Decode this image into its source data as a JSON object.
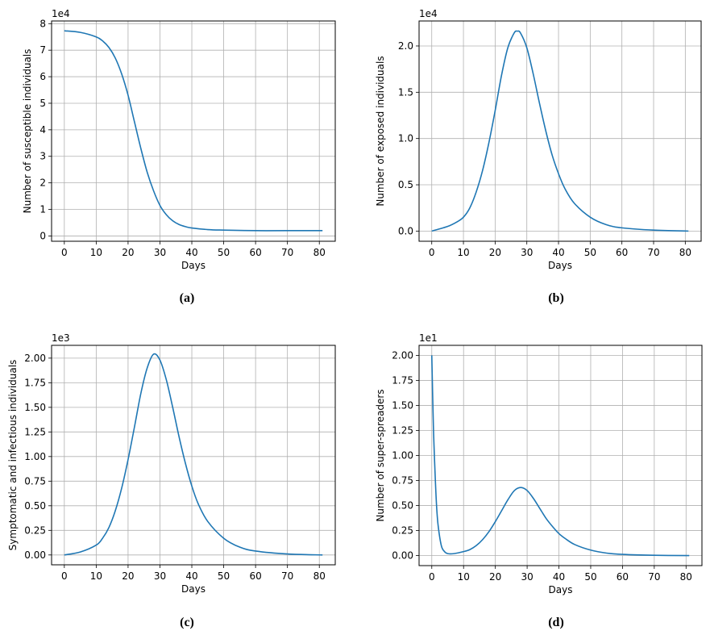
{
  "chart_data": [
    {
      "id": "a",
      "type": "line",
      "caption": "(a)",
      "xlabel": "Days",
      "ylabel": "Number of susceptible individuals",
      "offset_label": "1e4",
      "xlim": [
        -4,
        85
      ],
      "ylim": [
        -0.2,
        8.1
      ],
      "grid": true,
      "xticks": [
        0,
        10,
        20,
        30,
        40,
        50,
        60,
        70,
        80
      ],
      "yticks": [
        0,
        1,
        2,
        3,
        4,
        5,
        6,
        7,
        8
      ],
      "ytick_labels": [
        "0",
        "1",
        "2",
        "3",
        "4",
        "5",
        "6",
        "7",
        "8"
      ],
      "color": "#1f77b4",
      "x": [
        0,
        5,
        10,
        12,
        14,
        16,
        18,
        20,
        22,
        24,
        26,
        28,
        30,
        32,
        34,
        36,
        38,
        40,
        45,
        50,
        60,
        70,
        81
      ],
      "y": [
        7.73,
        7.67,
        7.5,
        7.35,
        7.1,
        6.7,
        6.1,
        5.3,
        4.3,
        3.3,
        2.4,
        1.7,
        1.15,
        0.8,
        0.57,
        0.43,
        0.35,
        0.3,
        0.24,
        0.22,
        0.2,
        0.2,
        0.2
      ]
    },
    {
      "id": "b",
      "type": "line",
      "caption": "(b)",
      "xlabel": "Days",
      "ylabel": "Number of exposed individuals",
      "offset_label": "1e4",
      "xlim": [
        -4,
        85
      ],
      "ylim": [
        -0.11,
        2.27
      ],
      "grid": true,
      "xticks": [
        0,
        10,
        20,
        30,
        40,
        50,
        60,
        70,
        80
      ],
      "yticks": [
        0,
        0.5,
        1,
        1.5,
        2
      ],
      "ytick_labels": [
        "0.0",
        "0.5",
        "1.0",
        "1.5",
        "2.0"
      ],
      "color": "#1f77b4",
      "x": [
        0,
        5,
        8,
        10,
        12,
        14,
        16,
        18,
        20,
        22,
        24,
        26,
        27,
        28,
        30,
        32,
        34,
        36,
        38,
        40,
        42,
        45,
        50,
        55,
        60,
        70,
        81
      ],
      "y": [
        0,
        0.05,
        0.1,
        0.15,
        0.25,
        0.42,
        0.65,
        0.95,
        1.3,
        1.68,
        1.98,
        2.14,
        2.16,
        2.14,
        1.98,
        1.7,
        1.38,
        1.08,
        0.82,
        0.62,
        0.46,
        0.3,
        0.15,
        0.07,
        0.035,
        0.01,
        0
      ]
    },
    {
      "id": "c",
      "type": "line",
      "caption": "(c)",
      "xlabel": "Days",
      "ylabel": "Symptomatic and infectious individuals",
      "offset_label": "1e3",
      "xlim": [
        -4,
        85
      ],
      "ylim": [
        -0.1,
        2.13
      ],
      "grid": true,
      "xticks": [
        0,
        10,
        20,
        30,
        40,
        50,
        60,
        70,
        80
      ],
      "yticks": [
        0,
        0.25,
        0.5,
        0.75,
        1,
        1.25,
        1.5,
        1.75,
        2
      ],
      "ytick_labels": [
        "0.00",
        "0.25",
        "0.50",
        "0.75",
        "1.00",
        "1.25",
        "1.50",
        "1.75",
        "2.00"
      ],
      "color": "#1f77b4",
      "x": [
        0,
        5,
        10,
        12,
        14,
        16,
        18,
        20,
        22,
        24,
        26,
        28,
        30,
        32,
        34,
        36,
        38,
        40,
        42,
        45,
        50,
        55,
        60,
        70,
        81
      ],
      "y": [
        0,
        0.03,
        0.1,
        0.17,
        0.28,
        0.45,
        0.68,
        0.97,
        1.3,
        1.64,
        1.9,
        2.04,
        1.98,
        1.78,
        1.5,
        1.2,
        0.93,
        0.7,
        0.52,
        0.34,
        0.17,
        0.08,
        0.04,
        0.01,
        0
      ]
    },
    {
      "id": "d",
      "type": "line",
      "caption": "(d)",
      "xlabel": "Days",
      "ylabel": "Number of super-spreaders",
      "offset_label": "1e1",
      "xlim": [
        -4,
        85
      ],
      "ylim": [
        -0.1,
        2.1
      ],
      "grid": true,
      "xticks": [
        0,
        10,
        20,
        30,
        40,
        50,
        60,
        70,
        80
      ],
      "yticks": [
        0,
        0.25,
        0.5,
        0.75,
        1,
        1.25,
        1.5,
        1.75,
        2
      ],
      "ytick_labels": [
        "0.00",
        "0.25",
        "0.50",
        "0.75",
        "1.00",
        "1.25",
        "1.50",
        "1.75",
        "2.00"
      ],
      "color": "#1f77b4",
      "x": [
        0,
        0.5,
        1,
        1.5,
        2,
        3,
        4,
        5,
        7,
        10,
        12,
        14,
        16,
        18,
        20,
        22,
        24,
        26,
        28,
        30,
        32,
        34,
        36,
        38,
        40,
        42,
        45,
        50,
        55,
        60,
        70,
        81
      ],
      "y": [
        2.0,
        1.3,
        0.85,
        0.5,
        0.3,
        0.1,
        0.04,
        0.02,
        0.02,
        0.04,
        0.06,
        0.1,
        0.16,
        0.24,
        0.34,
        0.45,
        0.56,
        0.65,
        0.68,
        0.65,
        0.57,
        0.47,
        0.37,
        0.29,
        0.22,
        0.17,
        0.11,
        0.055,
        0.025,
        0.012,
        0.003,
        0
      ]
    }
  ]
}
